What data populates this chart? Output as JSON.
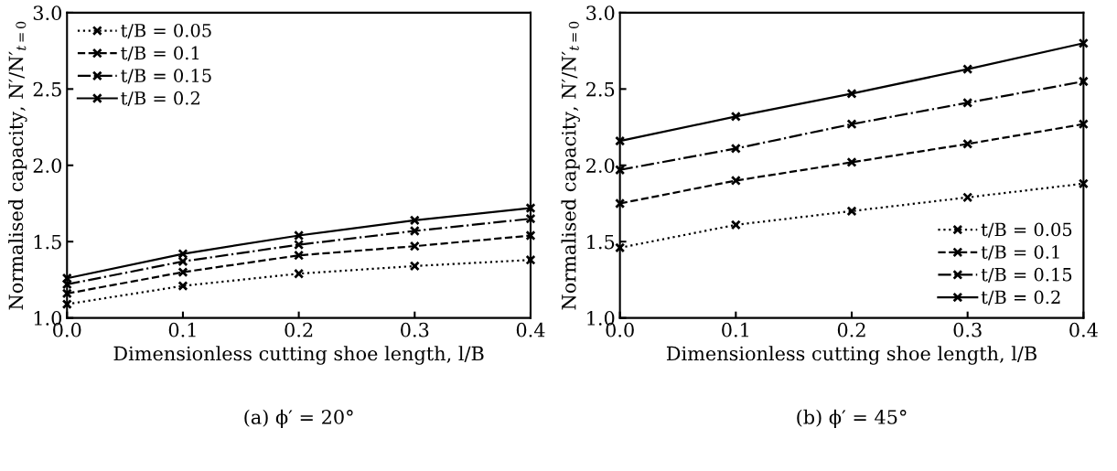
{
  "chart_data": [
    {
      "type": "line",
      "xlabel": "Dimensionless cutting shoe length, l/B",
      "ylabel": "Normalised capacity, N′/N′$_{t=0}$",
      "x": [
        0,
        0.1,
        0.2,
        0.3,
        0.4
      ],
      "xlim": [
        0,
        0.4
      ],
      "ylim": [
        1.0,
        3.0
      ],
      "xticks": [
        {
          "value": 0,
          "label": "0.0"
        },
        {
          "value": 0.1,
          "label": "0.1"
        },
        {
          "value": 0.2,
          "label": "0.2"
        },
        {
          "value": 0.3,
          "label": "0.3"
        },
        {
          "value": 0.4,
          "label": "0.4"
        }
      ],
      "yticks": [
        {
          "value": 1,
          "label": "1.0"
        },
        {
          "value": 1.5,
          "label": "1.5"
        },
        {
          "value": 2,
          "label": "2.0"
        },
        {
          "value": 2.5,
          "label": "2.5"
        },
        {
          "value": 3,
          "label": "3.0"
        }
      ],
      "marker": "cross",
      "grid": false,
      "legend": "top left",
      "annotations": [
        "(a) ϕ′ = 20°"
      ],
      "series": [
        {
          "name": "t/B = 0.05",
          "color": "#000000",
          "line_style": "dotted",
          "values": [
            1.09,
            1.21,
            1.29,
            1.34,
            1.38
          ]
        },
        {
          "name": "t/B = 0.1",
          "color": "#000000",
          "line_style": "dashed",
          "values": [
            1.16,
            1.3,
            1.41,
            1.47,
            1.54
          ]
        },
        {
          "name": "t/B = 0.15",
          "color": "#000000",
          "line_style": "dashdot",
          "values": [
            1.22,
            1.37,
            1.48,
            1.57,
            1.65
          ]
        },
        {
          "name": "t/B = 0.2",
          "color": "#000000",
          "line_style": "solid",
          "values": [
            1.26,
            1.42,
            1.54,
            1.64,
            1.72
          ]
        }
      ]
    },
    {
      "type": "line",
      "xlabel": "Dimensionless cutting shoe length, l/B",
      "ylabel": "Normalised capacity, N′/N′$_{t=0}$",
      "x": [
        0,
        0.1,
        0.2,
        0.3,
        0.4
      ],
      "xlim": [
        0,
        0.4
      ],
      "ylim": [
        1.0,
        3.0
      ],
      "xticks": [
        {
          "value": 0,
          "label": "0.0"
        },
        {
          "value": 0.1,
          "label": "0.1"
        },
        {
          "value": 0.2,
          "label": "0.2"
        },
        {
          "value": 0.3,
          "label": "0.3"
        },
        {
          "value": 0.4,
          "label": "0.4"
        }
      ],
      "yticks": [
        {
          "value": 1,
          "label": "1.0"
        },
        {
          "value": 1.5,
          "label": "1.5"
        },
        {
          "value": 2,
          "label": "2.0"
        },
        {
          "value": 2.5,
          "label": "2.5"
        },
        {
          "value": 3,
          "label": "3.0"
        }
      ],
      "marker": "cross",
      "grid": false,
      "legend": "bottom right",
      "annotations": [
        "(b) ϕ′ = 45°"
      ],
      "series": [
        {
          "name": "t/B = 0.05",
          "color": "#000000",
          "line_style": "dotted",
          "values": [
            1.46,
            1.61,
            1.7,
            1.79,
            1.88
          ]
        },
        {
          "name": "t/B = 0.1",
          "color": "#000000",
          "line_style": "dashed",
          "values": [
            1.75,
            1.9,
            2.02,
            2.14,
            2.27
          ]
        },
        {
          "name": "t/B = 0.15",
          "color": "#000000",
          "line_style": "dashdot",
          "values": [
            1.97,
            2.11,
            2.27,
            2.41,
            2.55
          ]
        },
        {
          "name": "t/B = 0.2",
          "color": "#000000",
          "line_style": "solid",
          "values": [
            2.16,
            2.32,
            2.47,
            2.63,
            2.8
          ]
        }
      ]
    }
  ]
}
